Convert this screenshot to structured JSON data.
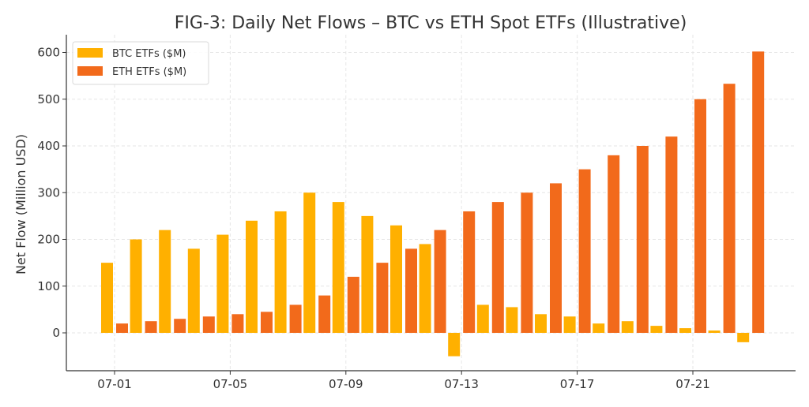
{
  "chart_data": {
    "type": "bar",
    "title": "FIG-3: Daily Net Flows – BTC vs ETH Spot ETFs (Illustrative)",
    "xlabel": "",
    "ylabel": "Net Flow (Million USD)",
    "ylim": [
      -80,
      650
    ],
    "yticks": [
      0,
      100,
      200,
      300,
      400,
      500,
      600
    ],
    "x_tick_labels": [
      "07-01",
      "07-05",
      "07-09",
      "07-13",
      "07-17",
      "07-21"
    ],
    "x_tick_days": [
      1,
      5,
      9,
      13,
      17,
      21
    ],
    "x_days": [
      1,
      2,
      3,
      4,
      5,
      6,
      7,
      8,
      9,
      10,
      11,
      12,
      13,
      14,
      15,
      16,
      17,
      18,
      19,
      20,
      21,
      22,
      23
    ],
    "grid": true,
    "legend_position": "top-left",
    "series": [
      {
        "name": "BTC ETFs ($M)",
        "color": "#ffb000",
        "values": [
          150,
          200,
          220,
          180,
          210,
          240,
          260,
          300,
          280,
          250,
          230,
          190,
          -50,
          60,
          55,
          40,
          35,
          20,
          25,
          15,
          10,
          5,
          -20
        ]
      },
      {
        "name": "ETH ETFs ($M)",
        "color": "#f26a1b",
        "values": [
          20,
          25,
          30,
          35,
          40,
          45,
          60,
          80,
          120,
          150,
          180,
          220,
          260,
          280,
          300,
          320,
          350,
          380,
          400,
          420,
          500,
          533,
          602
        ]
      }
    ]
  }
}
